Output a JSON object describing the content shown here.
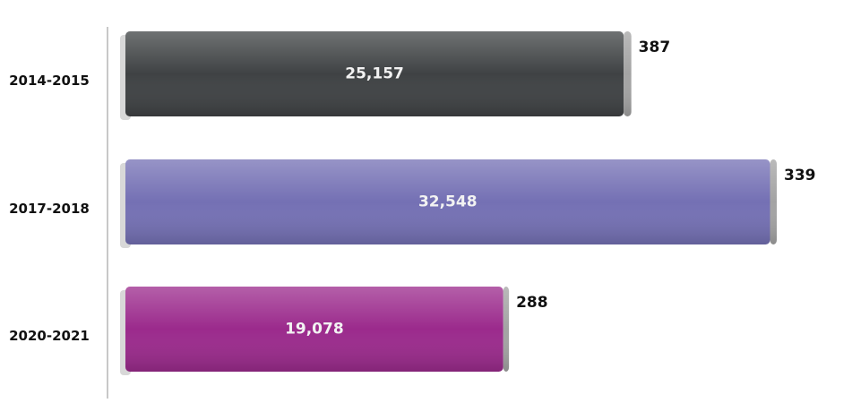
{
  "chart_data": {
    "type": "bar",
    "orientation": "horizontal",
    "stacked": true,
    "categories": [
      "2014-2015",
      "2017-2018",
      "2020-2021"
    ],
    "series": [
      {
        "colors": [
          "#3f4244",
          "#7470b4",
          "#9b2a8c"
        ],
        "values": [
          25157,
          32548,
          19078
        ],
        "value_labels": [
          "25,157",
          "32,548",
          "19,078"
        ]
      },
      {
        "color": "#a3a3a3",
        "values": [
          387,
          339,
          288
        ]
      }
    ]
  }
}
